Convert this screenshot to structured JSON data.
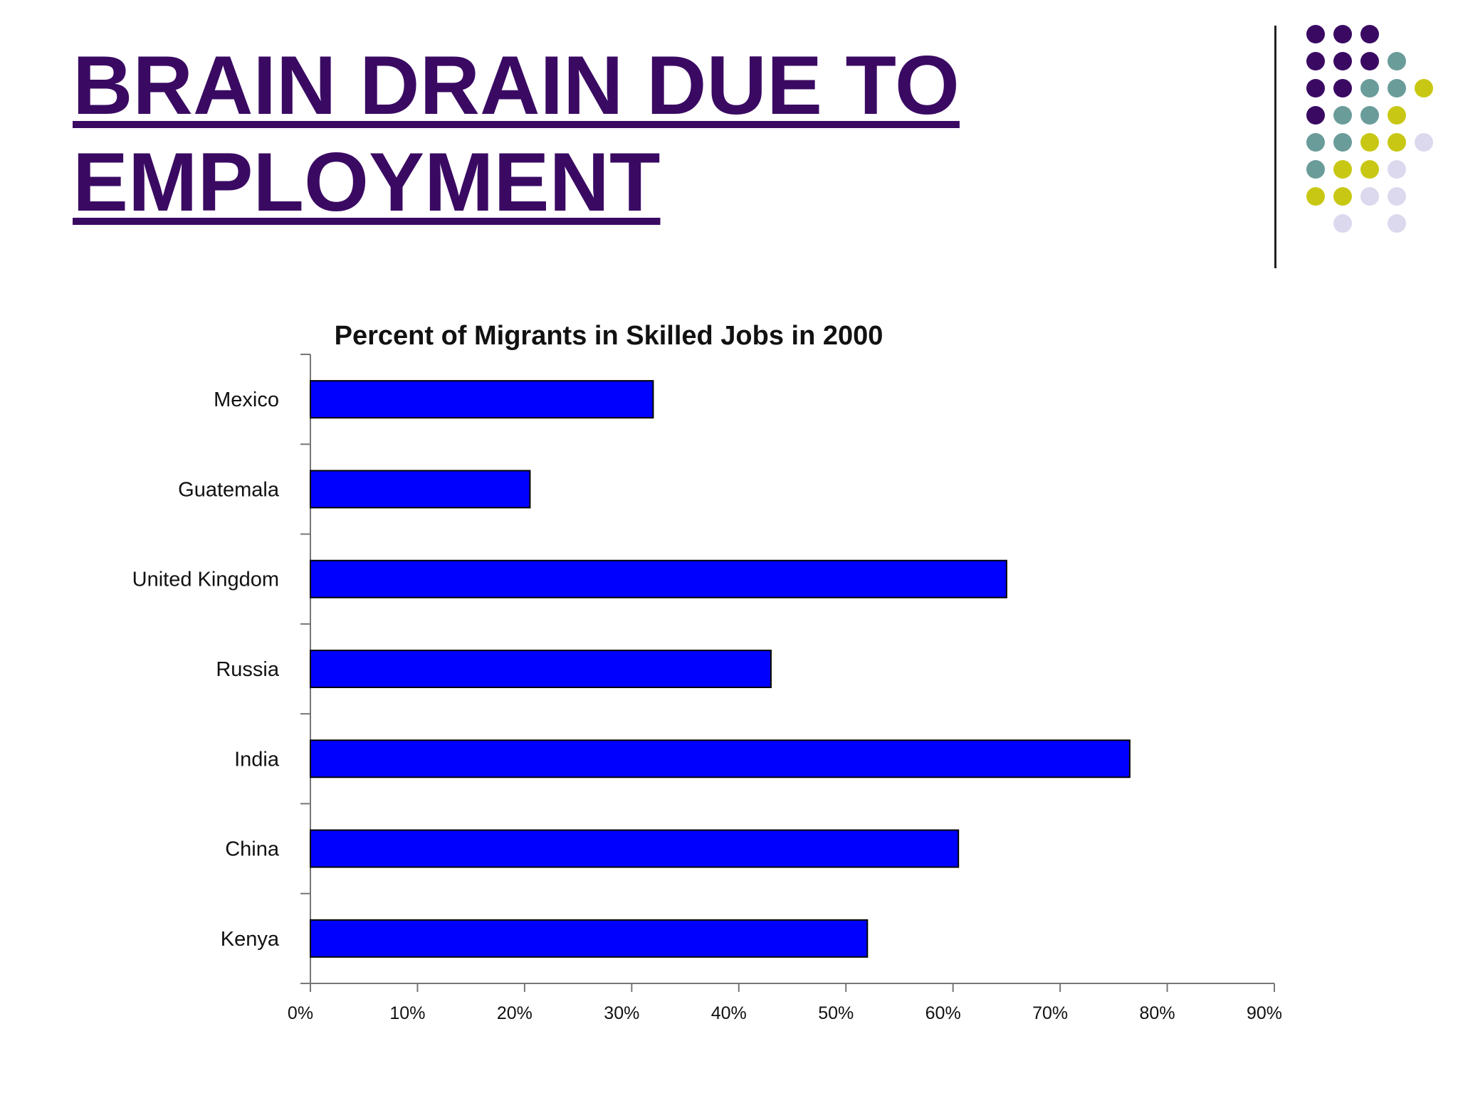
{
  "slide": {
    "title_line1": "BRAIN DRAIN DUE TO",
    "title_line2": "EMPLOYMENT"
  },
  "colors": {
    "title": "#3a0a63",
    "bar_fill": "#0000ff",
    "dot_purple": "#3a0a63",
    "dot_teal": "#6a9c9a",
    "dot_yellow": "#c8c814",
    "dot_lavender": "#dcd8ee"
  },
  "chart_data": {
    "type": "bar",
    "orientation": "horizontal",
    "title": "Percent of Migrants in Skilled Jobs in 2000",
    "categories": [
      "Mexico",
      "Guatemala",
      "United Kingdom",
      "Russia",
      "India",
      "China",
      "Kenya"
    ],
    "values": [
      32,
      20.5,
      65,
      43,
      76.5,
      60.5,
      52
    ],
    "value_format": "percent",
    "xlim": [
      0,
      90
    ],
    "x_ticks": [
      "0%",
      "10%",
      "20%",
      "30%",
      "40%",
      "50%",
      "60%",
      "70%",
      "80%",
      "90%"
    ],
    "xlabel": "",
    "ylabel": "",
    "grid": false,
    "legend": "none"
  }
}
